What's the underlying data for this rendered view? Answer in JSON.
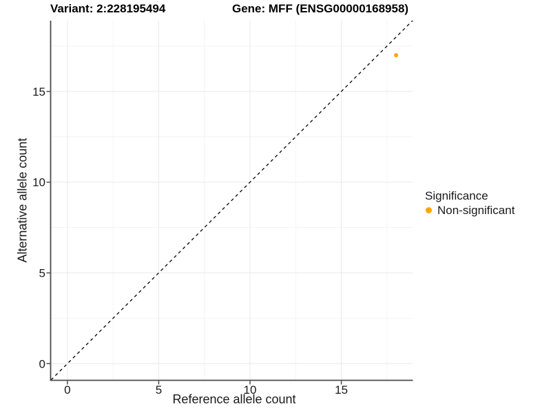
{
  "page": {
    "background": "#ffffff"
  },
  "titles": {
    "variant": "Variant: 2:228195494",
    "gene": "Gene: MFF (ENSG00000168958)"
  },
  "chart_data": {
    "type": "scatter",
    "xlabel": "Reference allele count",
    "ylabel": "Alternative allele count",
    "xlim": [
      -0.9,
      18.9
    ],
    "ylim": [
      -0.9,
      18.9
    ],
    "x_ticks": [
      0,
      5,
      10,
      15
    ],
    "y_ticks": [
      0,
      5,
      10,
      15
    ],
    "x_minor_ticks": [
      2.5,
      7.5,
      12.5,
      17.5
    ],
    "y_minor_ticks": [
      2.5,
      7.5,
      12.5,
      17.5
    ],
    "grid": true,
    "reference_line": {
      "type": "identity",
      "style": "dashed",
      "color": "#000000"
    },
    "series": [
      {
        "name": "Non-significant",
        "color": "#FFA500",
        "points": [
          {
            "x": 18,
            "y": 17
          }
        ]
      }
    ],
    "legend": {
      "title": "Significance",
      "position": "right",
      "items": [
        {
          "label": "Non-significant",
          "color": "#FFA500"
        }
      ]
    }
  },
  "style_colors": {
    "axis_line": "#4a4a4a",
    "tick_label": "#1a1a1a",
    "grid_major": "#e9e9e9",
    "grid_minor": "#f4f4f4"
  }
}
